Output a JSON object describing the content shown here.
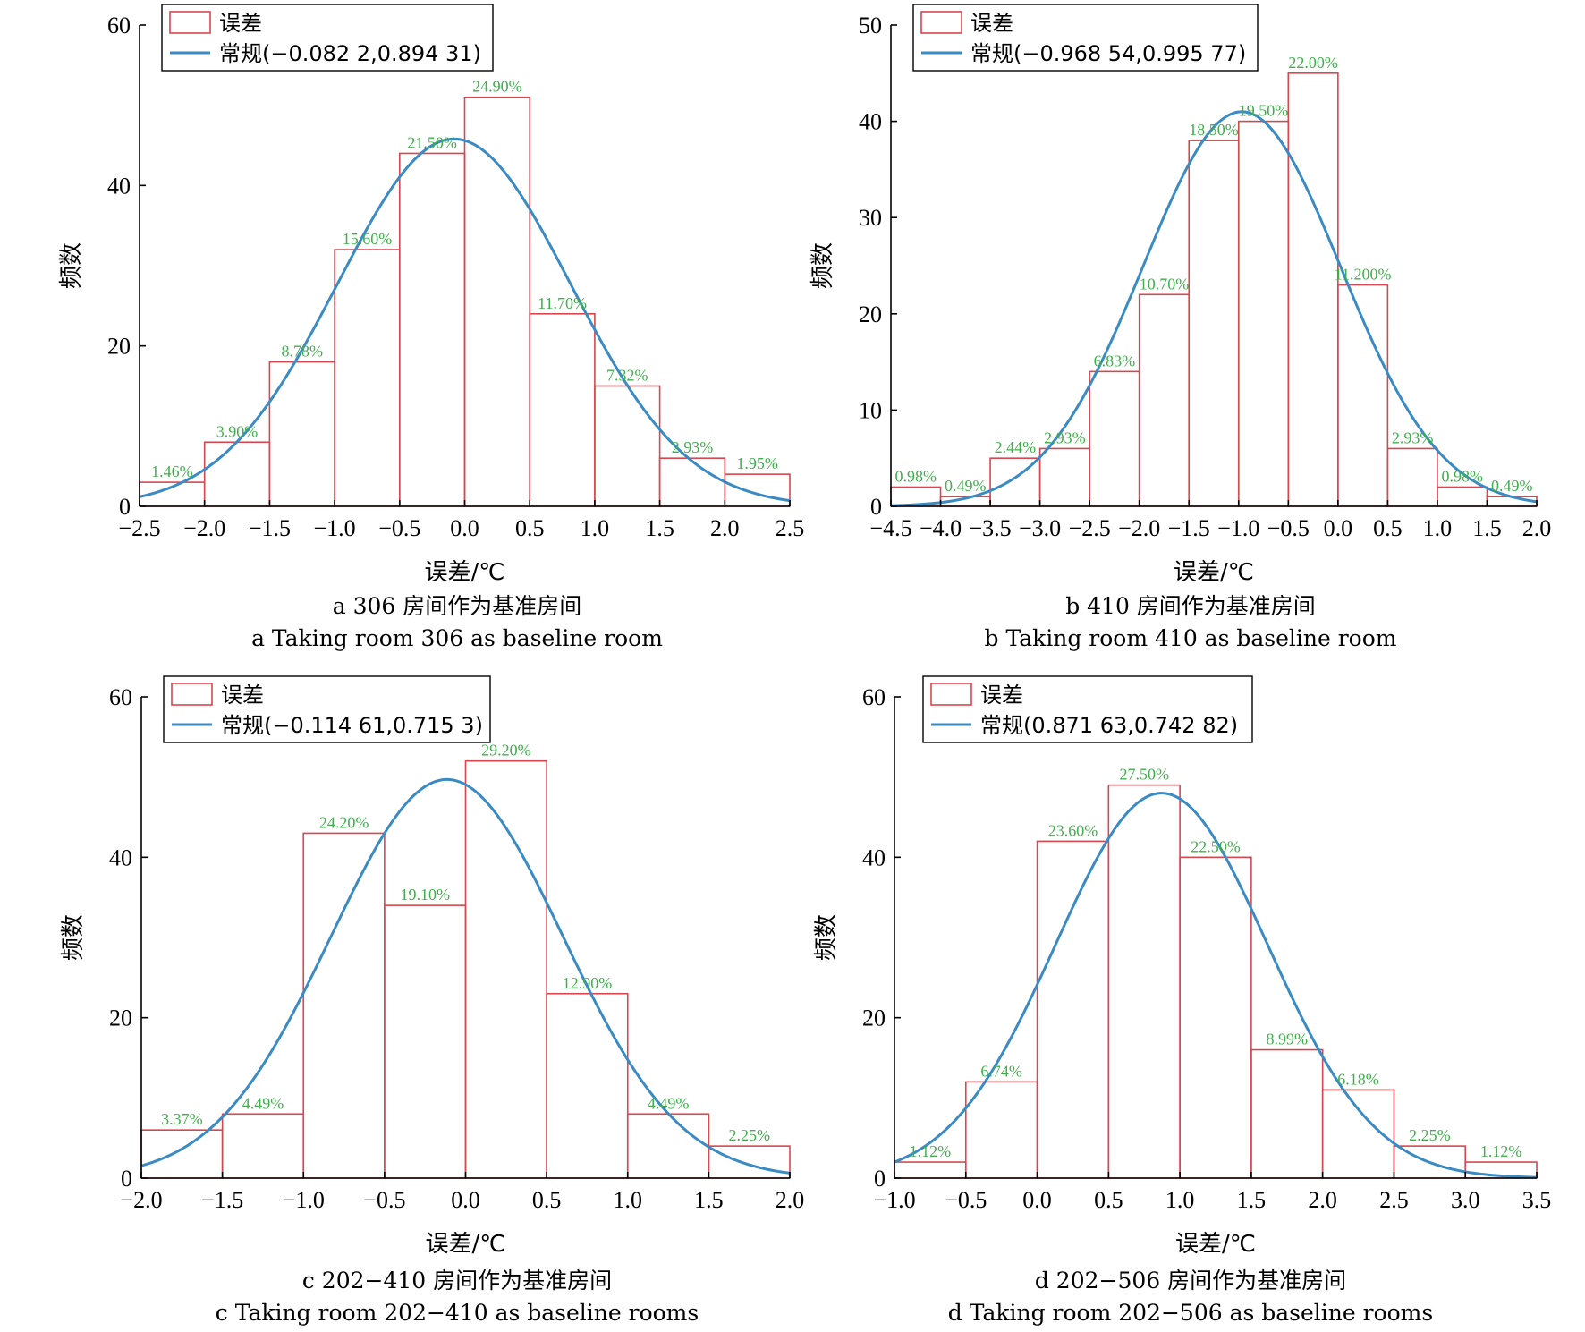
{
  "colors": {
    "bar": "#d6474f",
    "curve": "#3a8bc4",
    "pct": "#3fb04b"
  },
  "panels": [
    {
      "caption_cn": "a  306 房间作为基准房间",
      "caption_en": "a  Taking room 306 as baseline room",
      "chart_data": {
        "type": "bar",
        "xlabel": "误差/℃",
        "ylabel": "频数",
        "legend": [
          "误差",
          "常规(−0.082 2,0.894 31)"
        ],
        "legend_position": "top-left",
        "xlim": [
          -2.5,
          2.5
        ],
        "ylim": [
          0,
          60
        ],
        "xticks": [
          -2.5,
          -2.0,
          -1.5,
          -1.0,
          -0.5,
          0.0,
          0.5,
          1.0,
          1.5,
          2.0,
          2.5
        ],
        "xtick_labels": [
          "−2.5",
          "−2.0",
          "−1.5",
          "−1.0",
          "−0.5",
          "0.0",
          "0.5",
          "1.0",
          "1.5",
          "2.0",
          "2.5"
        ],
        "yticks": [
          0,
          20,
          40,
          60
        ],
        "ytick_labels": [
          "0",
          "20",
          "40",
          "60"
        ],
        "bin_width": 0.5,
        "bins": [
          {
            "start": -2.5,
            "count": 3,
            "label": "1.46%"
          },
          {
            "start": -2.0,
            "count": 8,
            "label": "3.90%"
          },
          {
            "start": -1.5,
            "count": 18,
            "label": "8.78%"
          },
          {
            "start": -1.0,
            "count": 32,
            "label": "15.60%"
          },
          {
            "start": -0.5,
            "count": 44,
            "label": "21.50%"
          },
          {
            "start": 0.0,
            "count": 51,
            "label": "24.90%"
          },
          {
            "start": 0.5,
            "count": 24,
            "label": "11.70%"
          },
          {
            "start": 1.0,
            "count": 15,
            "label": "7.32%"
          },
          {
            "start": 1.5,
            "count": 6,
            "label": "2.93%"
          },
          {
            "start": 2.0,
            "count": 4,
            "label": "1.95%"
          }
        ],
        "fit": {
          "mean": -0.0822,
          "sd": 0.89431,
          "peak": 45.8
        }
      }
    },
    {
      "caption_cn": "b  410 房间作为基准房间",
      "caption_en": "b  Taking room 410 as baseline room",
      "chart_data": {
        "type": "bar",
        "xlabel": "误差/℃",
        "ylabel": "频数",
        "legend": [
          "误差",
          "常规(−0.968 54,0.995 77)"
        ],
        "legend_position": "top-left",
        "xlim": [
          -4.5,
          2.0
        ],
        "ylim": [
          0,
          50
        ],
        "xticks": [
          -4.5,
          -4.0,
          -3.5,
          -3.0,
          -2.5,
          -2.0,
          -1.5,
          -1.0,
          -0.5,
          0.0,
          0.5,
          1.0,
          1.5,
          2.0
        ],
        "xtick_labels": [
          "−4.5",
          "−4.0",
          "−3.5",
          "−3.0",
          "−2.5",
          "−2.0",
          "−1.5",
          "−1.0",
          "−0.5",
          "0.0",
          "0.5",
          "1.0",
          "1.5",
          "2.0"
        ],
        "yticks": [
          0,
          10,
          20,
          30,
          40,
          50
        ],
        "ytick_labels": [
          "0",
          "10",
          "20",
          "30",
          "40",
          "50"
        ],
        "bin_width": 0.5,
        "bins": [
          {
            "start": -4.5,
            "count": 2,
            "label": "0.98%"
          },
          {
            "start": -4.0,
            "count": 1,
            "label": "0.49%"
          },
          {
            "start": -3.5,
            "count": 5,
            "label": "2.44%"
          },
          {
            "start": -3.0,
            "count": 6,
            "label": "2.93%"
          },
          {
            "start": -2.5,
            "count": 14,
            "label": "6.83%"
          },
          {
            "start": -2.0,
            "count": 22,
            "label": "10.70%"
          },
          {
            "start": -1.5,
            "count": 38,
            "label": "18.50%"
          },
          {
            "start": -1.0,
            "count": 40,
            "label": "19.50%"
          },
          {
            "start": -0.5,
            "count": 45,
            "label": "22.00%"
          },
          {
            "start": 0.0,
            "count": 23,
            "label": "11.200%"
          },
          {
            "start": 0.5,
            "count": 6,
            "label": "2.93%"
          },
          {
            "start": 1.0,
            "count": 2,
            "label": "0.98%"
          },
          {
            "start": 1.5,
            "count": 1,
            "label": "0.49%"
          }
        ],
        "fit": {
          "mean": -0.96854,
          "sd": 0.99577,
          "peak": 41.0
        }
      }
    },
    {
      "caption_cn": "c  202−410 房间作为基准房间",
      "caption_en": "c  Taking room 202−410 as baseline rooms",
      "chart_data": {
        "type": "bar",
        "xlabel": "误差/℃",
        "ylabel": "频数",
        "legend": [
          "误差",
          "常规(−0.114 61,0.715 3)"
        ],
        "legend_position": "top-left",
        "xlim": [
          -2.0,
          2.0
        ],
        "ylim": [
          0,
          60
        ],
        "xticks": [
          -2.0,
          -1.5,
          -1.0,
          -0.5,
          0.0,
          0.5,
          1.0,
          1.5,
          2.0
        ],
        "xtick_labels": [
          "−2.0",
          "−1.5",
          "−1.0",
          "−0.5",
          "0.0",
          "0.5",
          "1.0",
          "1.5",
          "2.0"
        ],
        "yticks": [
          0,
          20,
          40,
          60
        ],
        "ytick_labels": [
          "0",
          "20",
          "40",
          "60"
        ],
        "bin_width": 0.5,
        "bins": [
          {
            "start": -2.0,
            "count": 6,
            "label": "3.37%"
          },
          {
            "start": -1.5,
            "count": 8,
            "label": "4.49%"
          },
          {
            "start": -1.0,
            "count": 43,
            "label": "24.20%"
          },
          {
            "start": -0.5,
            "count": 34,
            "label": "19.10%"
          },
          {
            "start": 0.0,
            "count": 52,
            "label": "29.20%"
          },
          {
            "start": 0.5,
            "count": 23,
            "label": "12.90%"
          },
          {
            "start": 1.0,
            "count": 8,
            "label": "4.49%"
          },
          {
            "start": 1.5,
            "count": 4,
            "label": "2.25%"
          }
        ],
        "fit": {
          "mean": -0.11461,
          "sd": 0.7153,
          "peak": 49.7
        }
      }
    },
    {
      "caption_cn": "d  202−506 房间作为基准房间",
      "caption_en": "d  Taking room 202−506 as baseline rooms",
      "chart_data": {
        "type": "bar",
        "xlabel": "误差/℃",
        "ylabel": "频数",
        "legend": [
          "误差",
          "常规(0.871 63,0.742 82)"
        ],
        "legend_position": "top-left",
        "xlim": [
          -1.0,
          3.5
        ],
        "ylim": [
          0,
          60
        ],
        "xticks": [
          -1.0,
          -0.5,
          0.0,
          0.5,
          1.0,
          1.5,
          2.0,
          2.5,
          3.0,
          3.5
        ],
        "xtick_labels": [
          "−1.0",
          "−0.5",
          "0.0",
          "0.5",
          "1.0",
          "1.5",
          "2.0",
          "2.5",
          "3.0",
          "3.5"
        ],
        "yticks": [
          0,
          20,
          40,
          60
        ],
        "ytick_labels": [
          "0",
          "20",
          "40",
          "60"
        ],
        "bin_width": 0.5,
        "bins": [
          {
            "start": -1.0,
            "count": 2,
            "label": "1.12%"
          },
          {
            "start": -0.5,
            "count": 12,
            "label": "6.74%"
          },
          {
            "start": 0.0,
            "count": 42,
            "label": "23.60%"
          },
          {
            "start": 0.5,
            "count": 49,
            "label": "27.50%"
          },
          {
            "start": 1.0,
            "count": 40,
            "label": "22.50%"
          },
          {
            "start": 1.5,
            "count": 16,
            "label": "8.99%"
          },
          {
            "start": 2.0,
            "count": 11,
            "label": "6.18%"
          },
          {
            "start": 2.5,
            "count": 4,
            "label": "2.25%"
          },
          {
            "start": 3.0,
            "count": 2,
            "label": "1.12%"
          }
        ],
        "fit": {
          "mean": 0.87163,
          "sd": 0.74282,
          "peak": 48.0
        }
      }
    }
  ]
}
